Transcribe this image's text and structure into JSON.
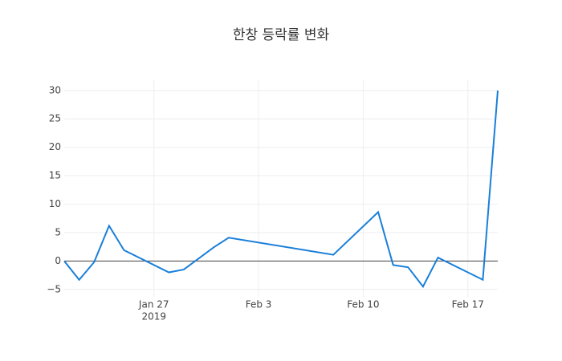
{
  "chart_data": {
    "type": "line",
    "title": "한창 등락률 변화",
    "x": [
      "2019-01-21",
      "2019-01-22",
      "2019-01-23",
      "2019-01-24",
      "2019-01-25",
      "2019-01-28",
      "2019-01-29",
      "2019-01-31",
      "2019-02-01",
      "2019-02-08",
      "2019-02-11",
      "2019-02-12",
      "2019-02-13",
      "2019-02-14",
      "2019-02-15",
      "2019-02-18",
      "2019-02-19"
    ],
    "series": [
      {
        "name": "등락률",
        "color": "#1a7fd9",
        "values": [
          0,
          -3.3,
          -0.2,
          6.2,
          1.9,
          -2.0,
          -1.5,
          2.4,
          4.1,
          1.1,
          8.6,
          -0.7,
          -1.1,
          -4.5,
          0.6,
          -3.3,
          30
        ]
      }
    ],
    "xlim": [
      "2019-01-21",
      "2019-02-19"
    ],
    "xticks": [
      {
        "value": "2019-01-27",
        "label": "Jan 27"
      },
      {
        "value": "2019-02-03",
        "label": "Feb 3"
      },
      {
        "value": "2019-02-10",
        "label": "Feb 10"
      },
      {
        "value": "2019-02-17",
        "label": "Feb 17"
      }
    ],
    "xtick_year": "2019",
    "ylim": [
      -6.3,
      31.8
    ],
    "yticks": [
      {
        "value": -5,
        "label": "−5"
      },
      0,
      5,
      10,
      15,
      20,
      25,
      30
    ],
    "grid": true,
    "zeroline": true
  }
}
